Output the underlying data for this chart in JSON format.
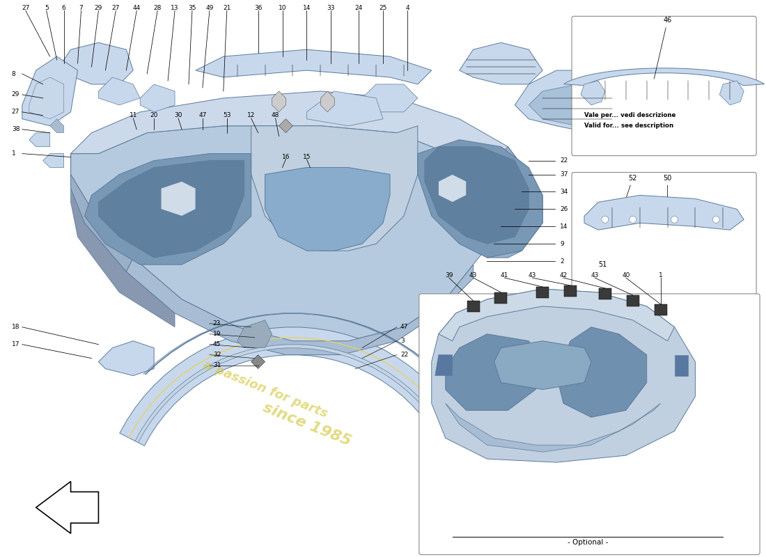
{
  "bg_color": "#ffffff",
  "bumper_fill": "#b8cce4",
  "bumper_fill2": "#c8d8ec",
  "bumper_dark": "#8aabc8",
  "bumper_stroke": "#5a7a9a",
  "line_color": "#000000",
  "box1_text1": "Vale per... vedi descrizione",
  "box1_text2": "Valid for... see description",
  "box3_bottom_text": "- Optional -",
  "watermark_color": "#d4c840",
  "top_row1_labels": [
    "27",
    "5",
    "6",
    "7",
    "29",
    "27",
    "44",
    "28",
    "13",
    "35",
    "49",
    "21"
  ],
  "top_row2_labels": [
    "36",
    "10",
    "14",
    "33",
    "24",
    "25",
    "4"
  ],
  "left_col_labels": [
    "8",
    "29",
    "27",
    "38",
    "1"
  ],
  "inner_top_labels": [
    "11",
    "20",
    "30",
    "47",
    "53",
    "12",
    "48"
  ],
  "inner_mid_labels": [
    "16",
    "15"
  ],
  "right_col_labels": [
    "22",
    "37",
    "34",
    "26",
    "14",
    "9",
    "2"
  ],
  "bot_left_labels": [
    "18",
    "17"
  ],
  "bot_mid_labels": [
    "23",
    "19",
    "45",
    "32",
    "31"
  ],
  "bot_right_labels": [
    "47",
    "3",
    "22"
  ],
  "box1_label": "46",
  "box2_labels_top": [
    "52",
    "50"
  ],
  "box2_label_bot": "51",
  "box3_labels": [
    "39",
    "43",
    "41",
    "43",
    "42",
    "43",
    "40",
    "1"
  ]
}
